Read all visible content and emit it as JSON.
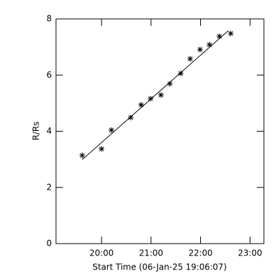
{
  "chart_data": {
    "type": "scatter",
    "x_label": "Start Time (06-Jan-25 19:06:07)",
    "y_label": "R/Rs",
    "x": [
      19.61,
      20.0,
      20.2,
      20.59,
      20.8,
      20.99,
      21.2,
      21.38,
      21.6,
      21.79,
      21.99,
      22.18,
      22.38,
      22.61
    ],
    "values": [
      3.14,
      3.37,
      4.04,
      4.49,
      4.94,
      5.16,
      5.29,
      5.69,
      6.06,
      6.58,
      6.91,
      7.08,
      7.38,
      7.48
    ],
    "fit_line": {
      "x": [
        19.61,
        22.56
      ],
      "values": [
        2.99,
        7.58
      ]
    },
    "xlim": [
      19.08,
      23.28
    ],
    "xticks": [
      {
        "value": 20,
        "label": "20:00"
      },
      {
        "value": 21,
        "label": "21:00"
      },
      {
        "value": 22,
        "label": "22:00"
      },
      {
        "value": 23,
        "label": "23:00"
      }
    ],
    "ylim": [
      0,
      8
    ],
    "yticks": [
      0,
      2,
      4,
      6,
      8
    ],
    "color": "#000000"
  }
}
